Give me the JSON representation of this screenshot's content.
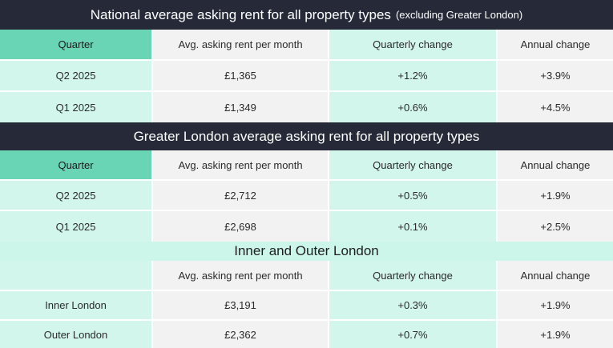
{
  "sections": [
    {
      "title": "National average asking rent for all property types",
      "title_suffix": "(excluding Greater London)",
      "header": [
        "Quarter",
        "Avg. asking rent per month",
        "Quarterly change",
        "Annual change"
      ],
      "rows": [
        [
          "Q2 2025",
          "£1,365",
          "+1.2%",
          "+3.9%"
        ],
        [
          "Q1 2025",
          "£1,349",
          "+0.6%",
          "+4.5%"
        ]
      ]
    },
    {
      "title": "Greater London average asking rent for all property types",
      "header": [
        "Quarter",
        "Avg. asking rent per month",
        "Quarterly change",
        "Annual change"
      ],
      "rows": [
        [
          "Q2 2025",
          "£2,712",
          "+0.5%",
          "+1.9%"
        ],
        [
          "Q1 2025",
          "£2,698",
          "+0.1%",
          "+2.5%"
        ]
      ]
    },
    {
      "title": "Inner and Outer London",
      "header": [
        "",
        "Avg. asking rent per month",
        "Quarterly change",
        "Annual change"
      ],
      "rows": [
        [
          "Inner London",
          "£3,191",
          "+0.3%",
          "+1.9%"
        ],
        [
          "Outer London",
          "£2,362",
          "+0.7%",
          "+1.9%"
        ]
      ]
    }
  ],
  "colors": {
    "dark_band": "#262a38",
    "header_accent": "#6ad5b5",
    "mint": "#d2f6ec",
    "grey": "#f2f2f2"
  }
}
